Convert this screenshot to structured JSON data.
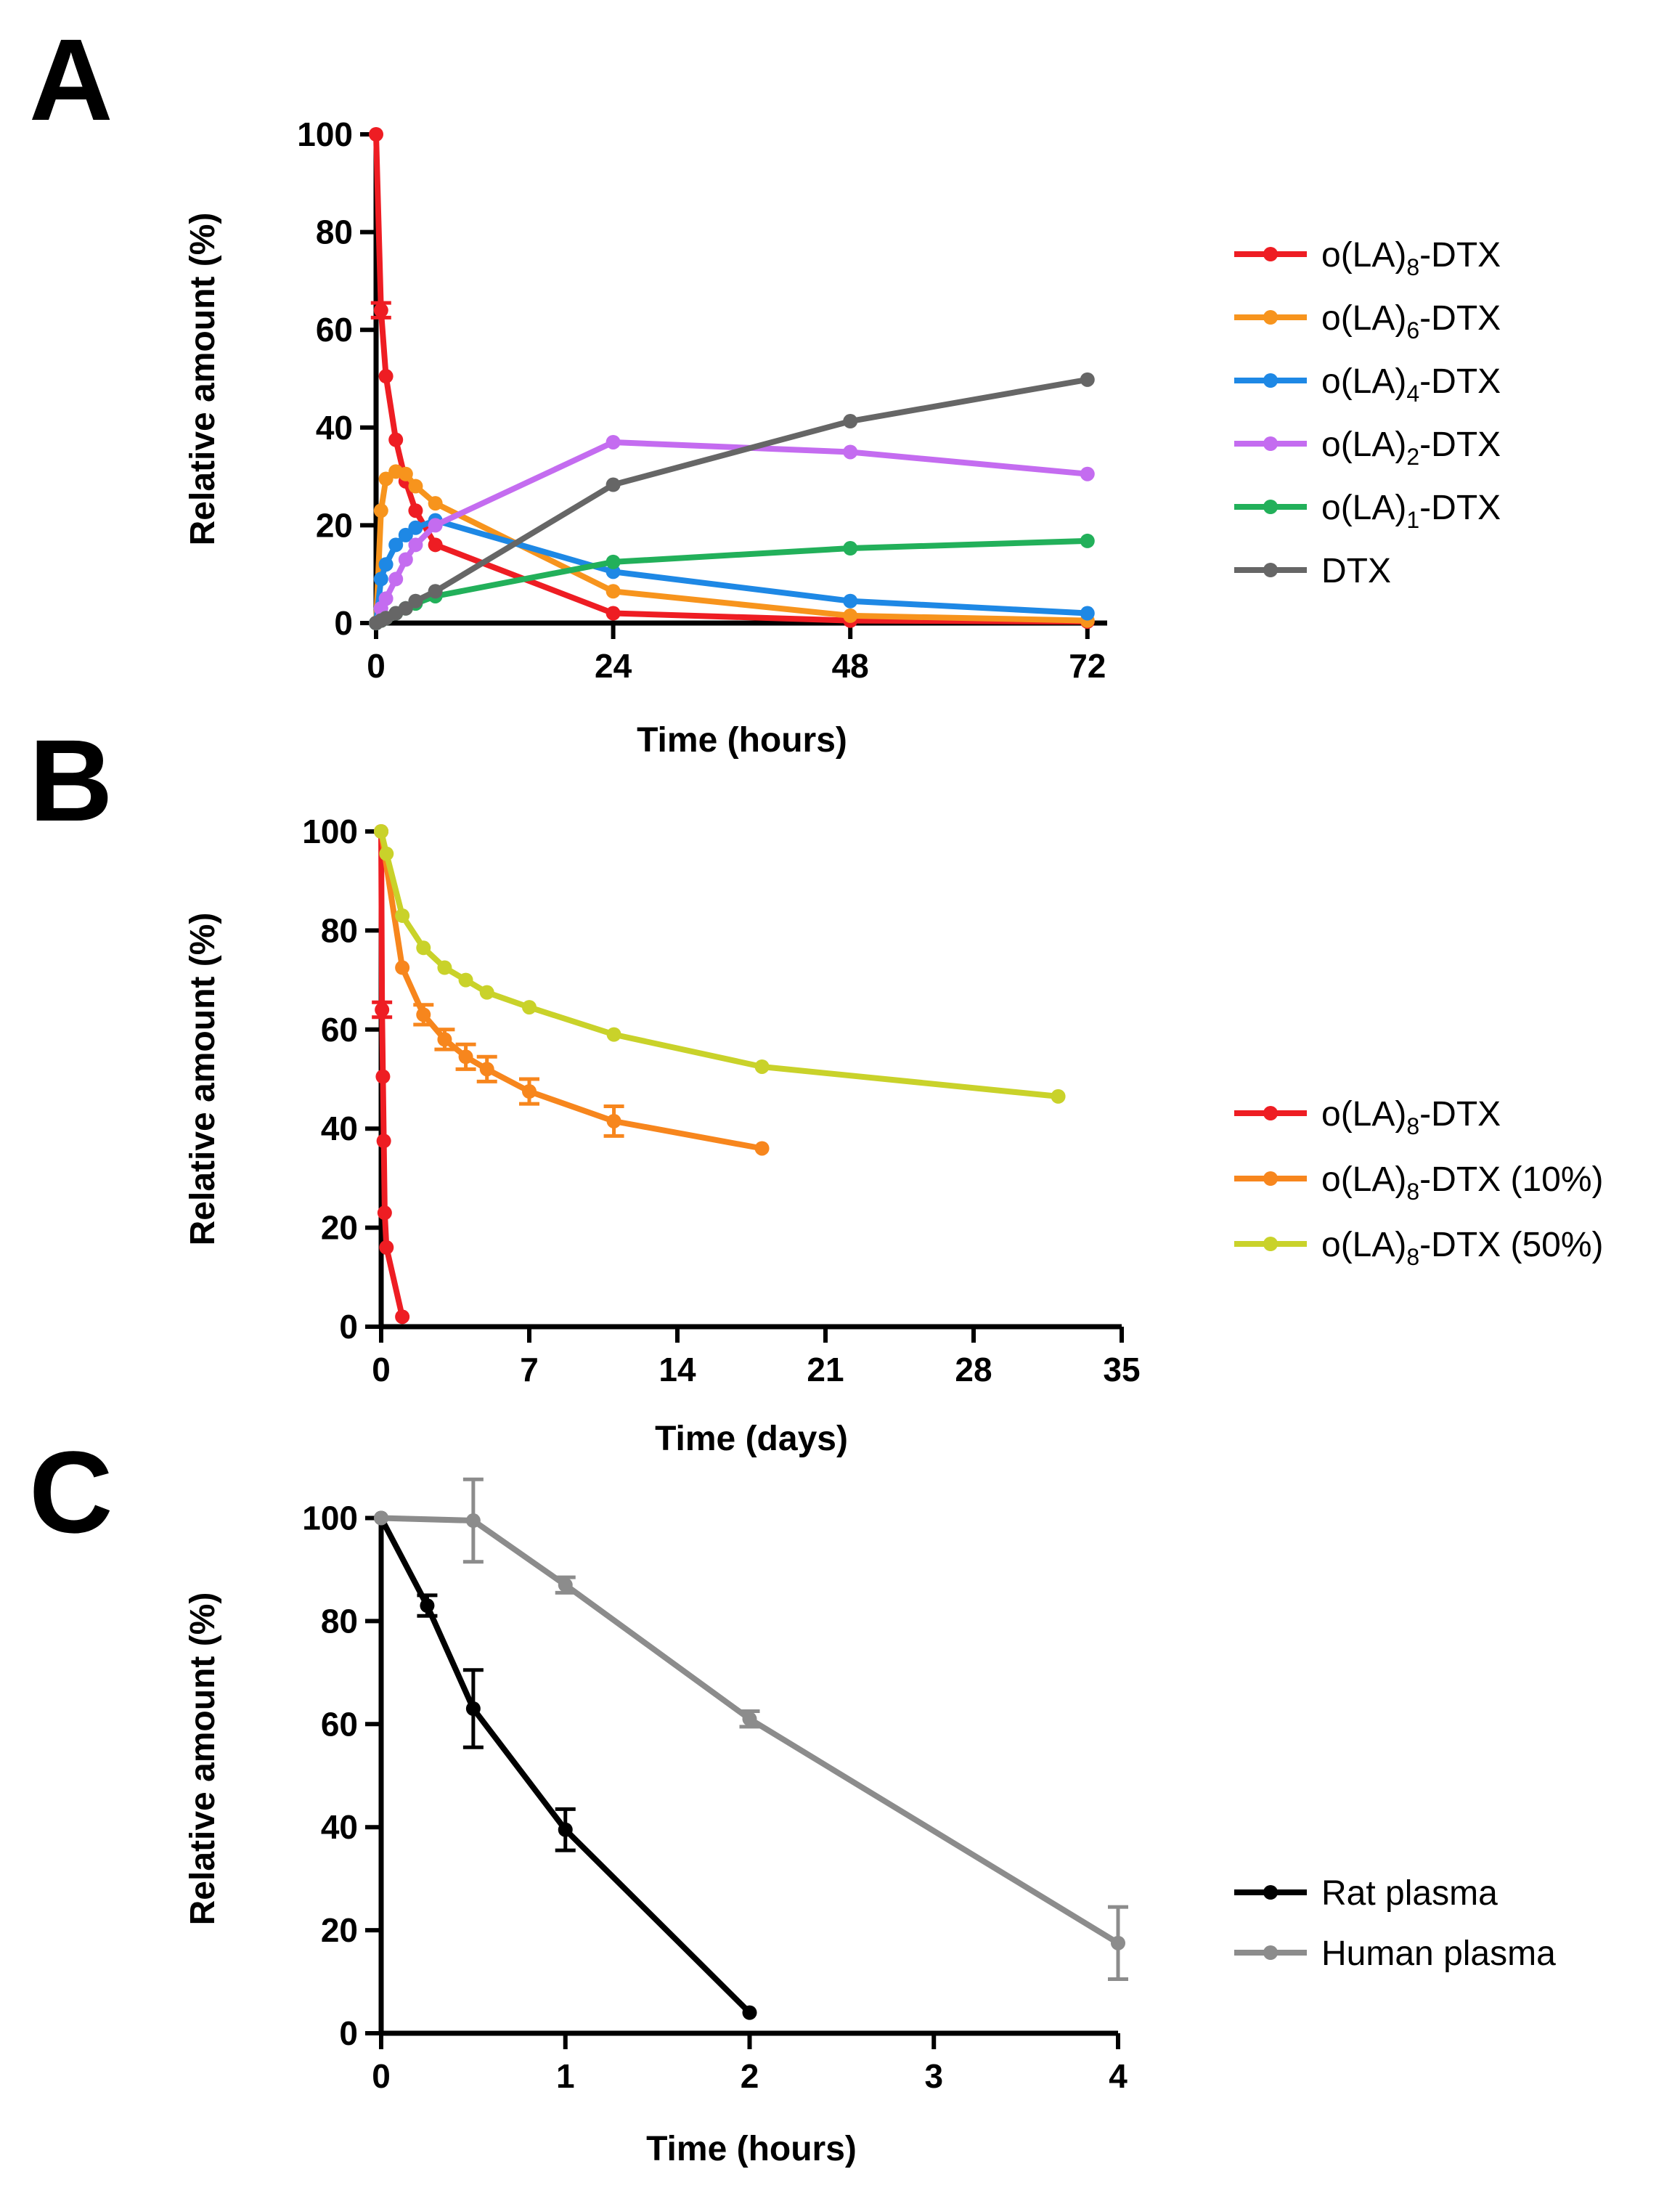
{
  "panels": [
    {
      "letter": "A",
      "chart_data": {
        "type": "line",
        "xlabel": "Time (hours)",
        "ylabel": "Relative amount (%)",
        "xlim": [
          0,
          74
        ],
        "ylim": [
          0,
          100
        ],
        "xticks": [
          0,
          24,
          48,
          72
        ],
        "yticks": [
          0,
          20,
          40,
          60,
          80,
          100
        ],
        "grid": false,
        "legend_position": "right",
        "series": [
          {
            "name": "o(LA)8-DTX",
            "label_parts": [
              "o(LA)",
              "8",
              "-DTX"
            ],
            "color": "#ee1d23",
            "x": [
              0,
              0.5,
              1,
              2,
              3,
              4,
              6,
              24,
              48,
              72
            ],
            "y": [
              100,
              64,
              50.5,
              37.5,
              29,
              23,
              16,
              2,
              0.5,
              0.3
            ],
            "err": [
              0,
              1.5,
              0,
              0,
              0,
              0,
              0,
              0,
              0,
              0
            ]
          },
          {
            "name": "o(LA)6-DTX",
            "label_parts": [
              "o(LA)",
              "6",
              "-DTX"
            ],
            "color": "#f7941d",
            "x": [
              0,
              0.5,
              1,
              2,
              3,
              4,
              6,
              24,
              48,
              72
            ],
            "y": [
              0,
              23,
              29.5,
              31,
              30.5,
              28,
              24.5,
              6.5,
              1.5,
              0.5
            ],
            "err": [
              0,
              0,
              0,
              0,
              0,
              0,
              0,
              0,
              0,
              0
            ]
          },
          {
            "name": "o(LA)4-DTX",
            "label_parts": [
              "o(LA)",
              "4",
              "-DTX"
            ],
            "color": "#1e88e5",
            "x": [
              0,
              0.5,
              1,
              2,
              3,
              4,
              6,
              24,
              48,
              72
            ],
            "y": [
              0,
              9,
              12,
              16,
              18,
              19.5,
              21,
              10.5,
              4.5,
              2
            ],
            "err": [
              0,
              0,
              0,
              0,
              0,
              0,
              0,
              0,
              0,
              0
            ]
          },
          {
            "name": "o(LA)2-DTX",
            "label_parts": [
              "o(LA)",
              "2",
              "-DTX"
            ],
            "color": "#c46cf0",
            "x": [
              0,
              0.5,
              1,
              2,
              3,
              4,
              6,
              24,
              48,
              72
            ],
            "y": [
              0,
              3,
              5,
              9,
              13,
              16,
              20,
              37,
              35,
              30.5
            ],
            "err": [
              0,
              0,
              0,
              0,
              0,
              0,
              0,
              0,
              0,
              0
            ]
          },
          {
            "name": "o(LA)1-DTX",
            "label_parts": [
              "o(LA)",
              "1",
              "-DTX"
            ],
            "color": "#22b05a",
            "x": [
              0,
              0.5,
              1,
              2,
              3,
              4,
              6,
              24,
              48,
              72
            ],
            "y": [
              0,
              0.5,
              1,
              2,
              3,
              4,
              5.5,
              12.5,
              15.3,
              16.8
            ],
            "err": [
              0,
              0,
              0,
              0,
              0,
              0,
              0,
              0,
              0,
              0
            ]
          },
          {
            "name": "DTX",
            "label_parts": [
              "DTX",
              "",
              ""
            ],
            "color": "#666666",
            "x": [
              0,
              0.5,
              1,
              2,
              3,
              4,
              6,
              24,
              48,
              72
            ],
            "y": [
              0,
              0.5,
              1,
              2,
              3,
              4.5,
              6.5,
              28.3,
              41.3,
              49.8
            ],
            "err": [
              0,
              0,
              0,
              0,
              0,
              0,
              0,
              0,
              0,
              0
            ]
          }
        ]
      }
    },
    {
      "letter": "B",
      "chart_data": {
        "type": "line",
        "xlabel": "Time (days)",
        "ylabel": "Relative amount (%)",
        "xlim": [
          0,
          35
        ],
        "ylim": [
          0,
          100
        ],
        "xticks": [
          0,
          7,
          14,
          21,
          28,
          35
        ],
        "yticks": [
          0,
          20,
          40,
          60,
          80,
          100
        ],
        "grid": false,
        "legend_position": "right",
        "series": [
          {
            "name": "o(LA)8-DTX",
            "label_parts": [
              "o(LA)",
              "8",
              "-DTX"
            ],
            "color": "#ee1d23",
            "x": [
              0,
              0.04,
              0.083,
              0.125,
              0.167,
              0.25,
              1
            ],
            "y": [
              100,
              64,
              50.5,
              37.5,
              23,
              16,
              2
            ],
            "err": [
              0,
              1.5,
              0,
              0,
              0,
              0,
              0
            ]
          },
          {
            "name": "o(LA)8-DTX (10%)",
            "label_parts": [
              "o(LA)",
              "8",
              "-DTX (10%)"
            ],
            "color": "#f7861d",
            "x": [
              0,
              1,
              2,
              3,
              4,
              5,
              7,
              11,
              18
            ],
            "y": [
              100,
              72.5,
              63,
              58,
              54.5,
              52,
              47.5,
              41.5,
              36
            ],
            "err": [
              0,
              0,
              2,
              2,
              2.5,
              2.5,
              2.5,
              3,
              0
            ]
          },
          {
            "name": "o(LA)8-DTX (50%)",
            "label_parts": [
              "o(LA)",
              "8",
              "-DTX (50%)"
            ],
            "color": "#c9d22a",
            "x": [
              0,
              0.25,
              1,
              2,
              3,
              4,
              5,
              7,
              11,
              18,
              32
            ],
            "y": [
              100,
              95.5,
              83,
              76.5,
              72.5,
              70,
              67.5,
              64.5,
              59,
              52.5,
              46.5
            ],
            "err": [
              0,
              0,
              0,
              0,
              0,
              0,
              0,
              0,
              0,
              0,
              0
            ]
          }
        ]
      }
    },
    {
      "letter": "C",
      "chart_data": {
        "type": "line",
        "xlabel": "Time (hours)",
        "ylabel": "Relative amount (%)",
        "xlim": [
          0,
          4
        ],
        "ylim": [
          0,
          105
        ],
        "xticks": [
          0,
          1,
          2,
          3,
          4
        ],
        "yticks": [
          0,
          20,
          40,
          60,
          80,
          100
        ],
        "grid": false,
        "legend_position": "right",
        "series": [
          {
            "name": "Rat plasma",
            "label_parts": [
              "Rat plasma",
              "",
              ""
            ],
            "color": "#000000",
            "x": [
              0,
              0.25,
              0.5,
              1,
              2
            ],
            "y": [
              100,
              83,
              63,
              39.5,
              4
            ],
            "err": [
              0,
              2,
              7.5,
              4,
              0
            ]
          },
          {
            "name": "Human plasma",
            "label_parts": [
              "Human plasma",
              "",
              ""
            ],
            "color": "#8c8c8c",
            "x": [
              0,
              0.5,
              1,
              2,
              4
            ],
            "y": [
              100,
              99.5,
              87,
              61,
              17.5
            ],
            "err": [
              0,
              8,
              1.5,
              1.5,
              7
            ]
          }
        ]
      }
    }
  ]
}
